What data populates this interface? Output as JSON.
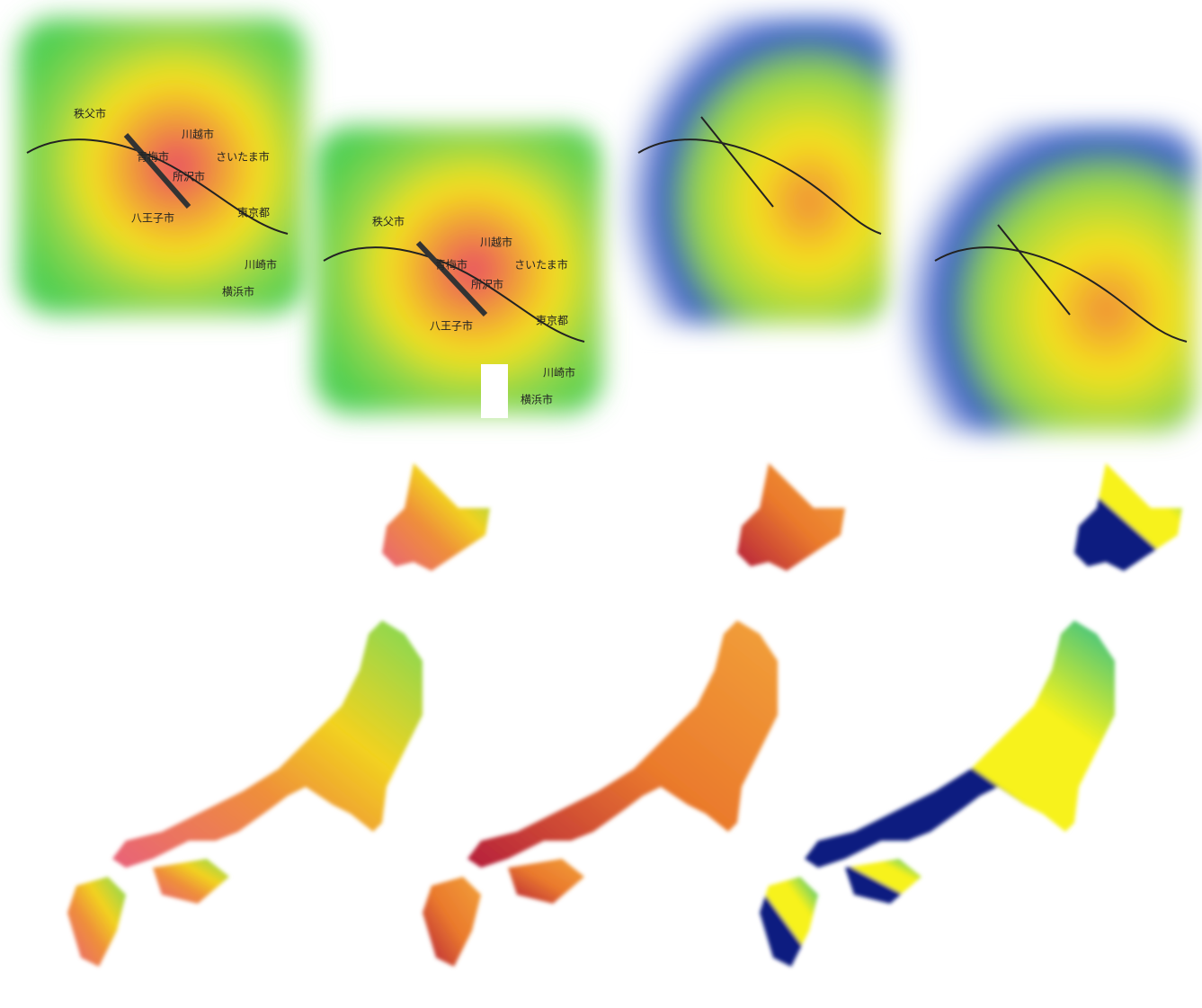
{
  "maps": [
    {
      "labels": [
        "秩父市",
        "川越市",
        "青梅市",
        "さいたま市",
        "所沢市",
        "八王子市",
        "東京都",
        "川崎市",
        "横浜市"
      ]
    },
    {
      "labels": [
        "秩父市",
        "川越市",
        "青梅市",
        "さいたま市",
        "所沢市",
        "八王子市",
        "東京都",
        "川崎市",
        "横浜市"
      ]
    }
  ]
}
